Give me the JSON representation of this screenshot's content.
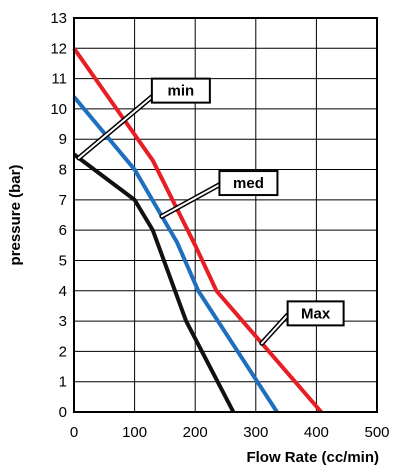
{
  "chart_data": {
    "type": "line",
    "title": "",
    "xlabel": "Flow Rate (cc/min)",
    "ylabel": "pressure (bar)",
    "xlim": [
      0,
      500
    ],
    "ylim": [
      0,
      13
    ],
    "xticks": [
      0,
      100,
      200,
      300,
      400,
      500
    ],
    "yticks": [
      0,
      1,
      2,
      3,
      4,
      5,
      6,
      7,
      8,
      9,
      10,
      11,
      12,
      13
    ],
    "grid": true,
    "series": [
      {
        "name": "min",
        "color": "#111111",
        "x": [
          0,
          100,
          130,
          185,
          263
        ],
        "y": [
          8.5,
          7,
          6,
          3,
          0
        ]
      },
      {
        "name": "med",
        "color": "#1f6fbf",
        "x": [
          0,
          100,
          170,
          205,
          335
        ],
        "y": [
          10.4,
          8,
          5.6,
          4,
          0
        ]
      },
      {
        "name": "Max",
        "color": "#e81e25",
        "x": [
          0,
          130,
          200,
          235,
          408
        ],
        "y": [
          12,
          8.3,
          5.5,
          4,
          0
        ]
      }
    ]
  }
}
